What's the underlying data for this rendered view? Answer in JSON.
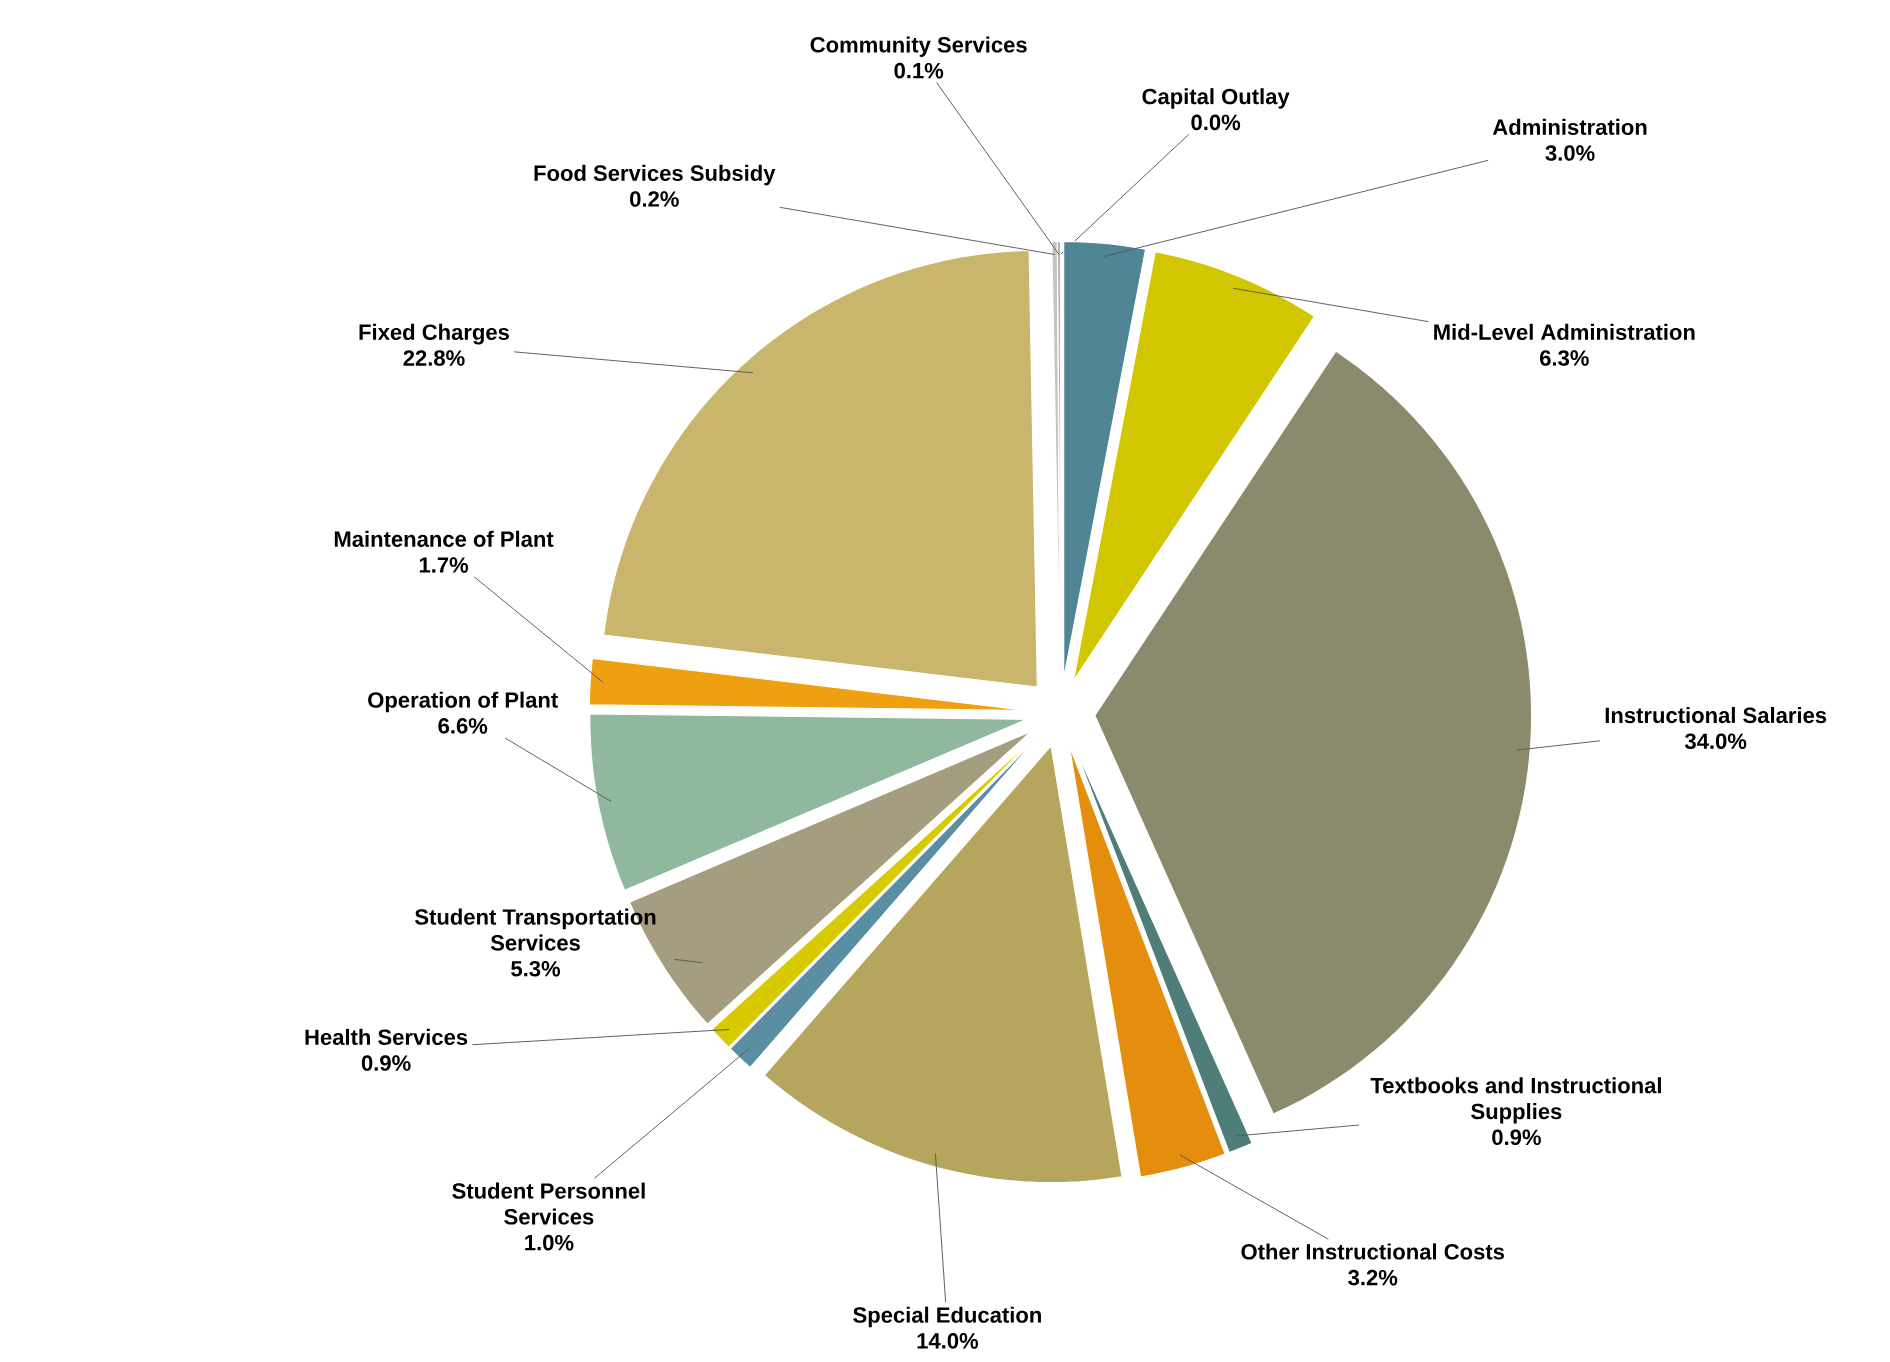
{
  "chart_data": {
    "type": "pie",
    "categories": [
      "Capital Outlay",
      "Administration",
      "Mid-Level Administration",
      "Instructional Salaries",
      "Textbooks and Instructional Supplies",
      "Other Instructional Costs",
      "Special Education",
      "Student Personnel Services",
      "Health Services",
      "Student Transportation Services",
      "Operation of Plant",
      "Maintenance of Plant",
      "Fixed Charges",
      "Food Services Subsidy",
      "Community Services"
    ],
    "values": [
      0.0,
      3.0,
      6.3,
      34.0,
      0.9,
      3.2,
      14.0,
      1.0,
      0.9,
      5.3,
      6.6,
      1.7,
      22.8,
      0.2,
      0.1
    ],
    "value_labels": [
      "0.0%",
      "3.0%",
      "6.3%",
      "34.0%",
      "0.9%",
      "3.2%",
      "14.0%",
      "1.0%",
      "0.9%",
      "5.3%",
      "6.6%",
      "1.7%",
      "22.8%",
      "0.2%",
      "0.1%"
    ],
    "colors": [
      "#8a9aa0",
      "#4f8595",
      "#d2c600",
      "#8b8a6c",
      "#4f7d7a",
      "#e58d0c",
      "#b6a55c",
      "#5a8ea2",
      "#d7ca00",
      "#a59d80",
      "#8fb89e",
      "#efa011",
      "#c9b56c",
      "#c4c4c4",
      "#9e9e9e"
    ]
  }
}
